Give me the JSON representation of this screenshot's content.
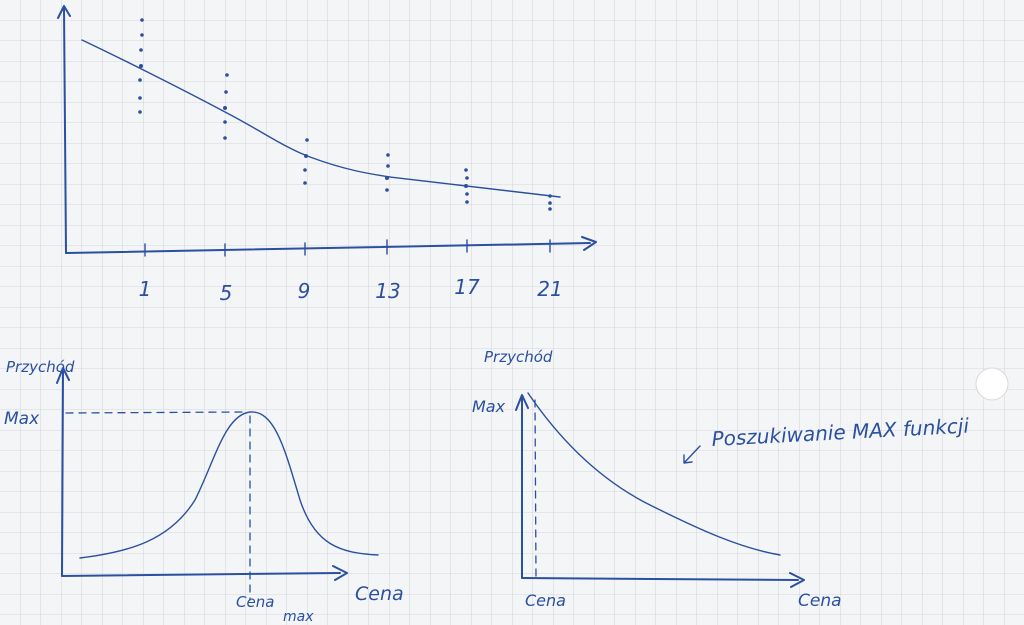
{
  "top_sketch": {
    "x_labels": [
      "1",
      "5",
      "9",
      "13",
      "17",
      "21"
    ]
  },
  "left_sketch": {
    "y_label": "Przychód",
    "max_label": "Max",
    "x_marker_line1": "Cena",
    "x_marker_line2": "max",
    "x_label": "Cena"
  },
  "right_sketch": {
    "y_label": "Przychód",
    "max_label": "Max",
    "x_marker": "Cena",
    "x_label": "Cena"
  },
  "annotation": "Poszukiwanie MAX funkcji"
}
